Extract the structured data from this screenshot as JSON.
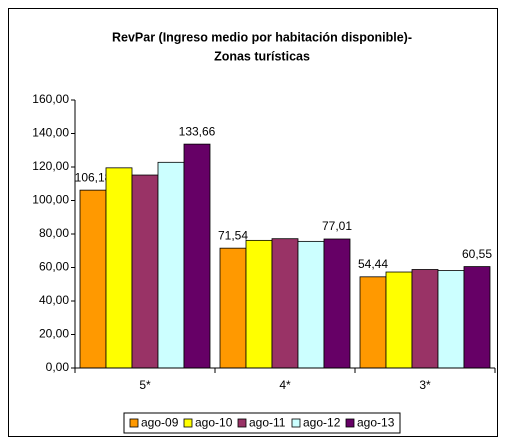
{
  "chart_data": {
    "type": "bar",
    "title": "RevPar (Ingreso medio por habitación disponible)-",
    "subtitle": "Zonas turísticas",
    "categories": [
      "5*",
      "4*",
      "3*"
    ],
    "series": [
      {
        "name": "ago-09",
        "color": "#ff9900",
        "values": [
          106.18,
          71.54,
          54.44
        ],
        "value_labels": [
          "106,18",
          "71,54",
          "54,44"
        ]
      },
      {
        "name": "ago-10",
        "color": "#ffff00",
        "values": [
          119.5,
          76.2,
          57.3
        ]
      },
      {
        "name": "ago-11",
        "color": "#993366",
        "values": [
          115.2,
          77.2,
          58.8
        ]
      },
      {
        "name": "ago-12",
        "color": "#ccffff",
        "values": [
          122.8,
          75.6,
          58.2
        ]
      },
      {
        "name": "ago-13",
        "color": "#660066",
        "values": [
          133.66,
          77.01,
          60.55
        ],
        "value_labels": [
          "133,66",
          "77,01",
          "60,55"
        ]
      }
    ],
    "ylim": [
      0,
      160
    ],
    "yticks": [
      {
        "value": 0,
        "label": "0,00"
      },
      {
        "value": 20,
        "label": "20,00"
      },
      {
        "value": 40,
        "label": "40,00"
      },
      {
        "value": 60,
        "label": "60,00"
      },
      {
        "value": 80,
        "label": "80,00"
      },
      {
        "value": 100,
        "label": "100,00"
      },
      {
        "value": 120,
        "label": "120,00"
      },
      {
        "value": 140,
        "label": "140,00"
      },
      {
        "value": 160,
        "label": "160,00"
      }
    ],
    "legend": "bottom"
  }
}
